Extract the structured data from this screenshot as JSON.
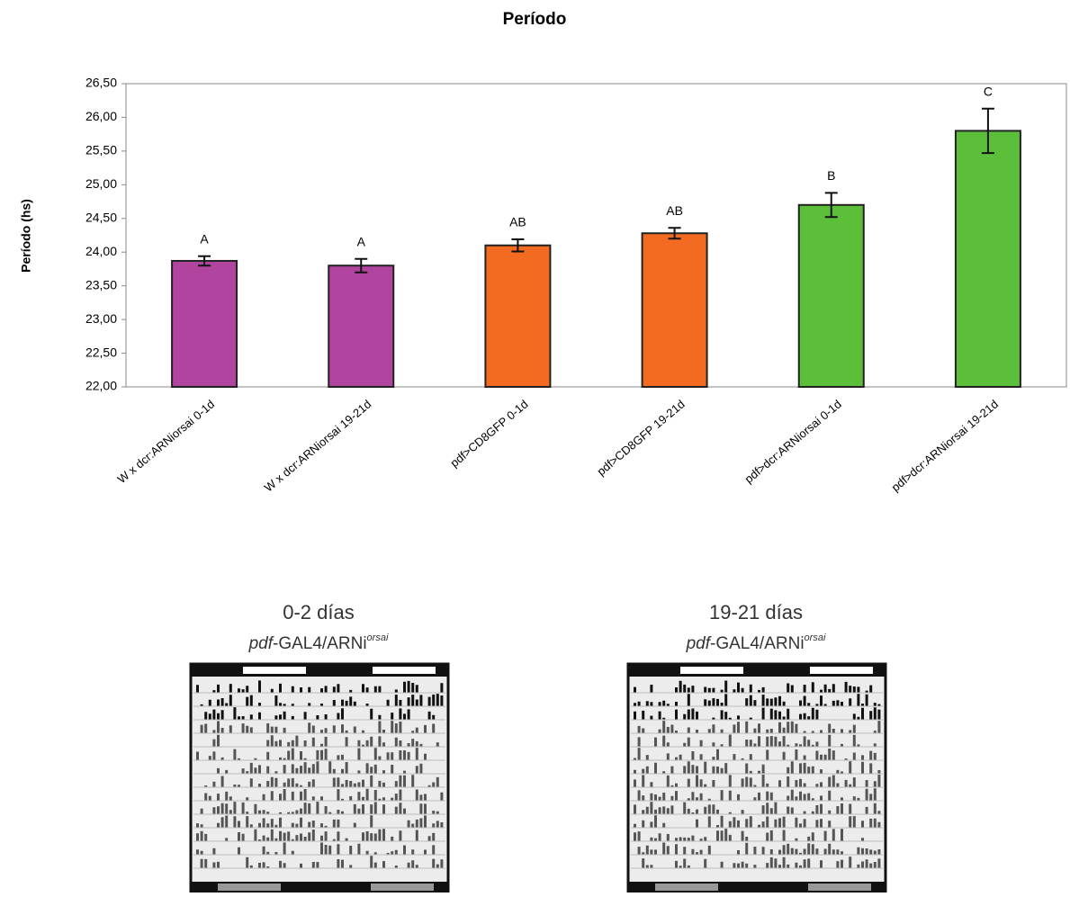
{
  "chart_data": {
    "type": "bar",
    "title": "Período",
    "y_label": "Período (hs)",
    "categories": [
      "W x dcr:ARNiorsai 0-1d",
      "W x dcr:ARNiorsai 19-21d",
      "pdf>CD8GFP 0-1d",
      "pdf>CD8GFP 19-21d",
      "pdf>dcr:ARNiorsai 0-1d",
      "pdf>dcr:ARNiorsai 19-21d"
    ],
    "values": [
      23.87,
      23.8,
      24.1,
      24.28,
      24.7,
      25.8
    ],
    "errors": [
      0.07,
      0.1,
      0.09,
      0.08,
      0.18,
      0.33
    ],
    "annotations": [
      "A",
      "A",
      "AB",
      "AB",
      "B",
      "C"
    ],
    "colors": [
      "#b0449e",
      "#b0449e",
      "#f26b21",
      "#f26b21",
      "#5cbf3a",
      "#5cbf3a"
    ],
    "ylim": [
      22,
      26.5
    ],
    "yticks": [
      {
        "value": 22,
        "label": "22,00"
      },
      {
        "value": 22.5,
        "label": "22,50"
      },
      {
        "value": 23,
        "label": "23,00"
      },
      {
        "value": 23.5,
        "label": "23,50"
      },
      {
        "value": 24,
        "label": "24,00"
      },
      {
        "value": 24.5,
        "label": "24,50"
      },
      {
        "value": 25,
        "label": "25,00"
      },
      {
        "value": 25.5,
        "label": "25,50"
      },
      {
        "value": 26,
        "label": "26,00"
      },
      {
        "value": 26.5,
        "label": "26,50"
      }
    ],
    "grid": false
  },
  "actograms": [
    {
      "title": "0-2 días",
      "genotype_italic": "pdf",
      "genotype": "-GAL4/ARNi",
      "superscript": "orsai"
    },
    {
      "title": "19-21 días",
      "genotype_italic": "pdf",
      "genotype": "-GAL4/ARNi",
      "superscript": "orsai"
    }
  ]
}
